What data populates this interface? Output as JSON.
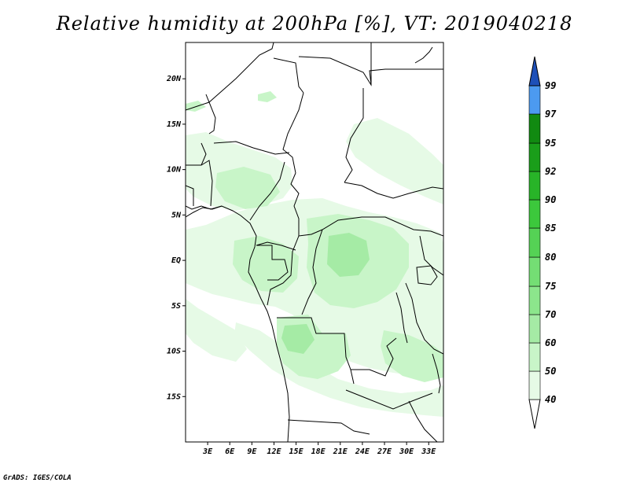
{
  "title": "Relative humidity at 200hPa [%], VT: 2019040218",
  "credit": "GrADS: IGES/COLA",
  "map": {
    "lon_range": [
      0,
      35
    ],
    "lat_range": [
      -20,
      24
    ],
    "y_axis_labels": [
      {
        "lat": 20,
        "text": "20N"
      },
      {
        "lat": 15,
        "text": "15N"
      },
      {
        "lat": 10,
        "text": "10N"
      },
      {
        "lat": 5,
        "text": "5N"
      },
      {
        "lat": 0,
        "text": "EQ"
      },
      {
        "lat": -5,
        "text": "5S"
      },
      {
        "lat": -10,
        "text": "10S"
      },
      {
        "lat": -15,
        "text": "15S"
      }
    ],
    "x_axis_labels": [
      {
        "lon": 3,
        "text": "3E"
      },
      {
        "lon": 6,
        "text": "6E"
      },
      {
        "lon": 9,
        "text": "9E"
      },
      {
        "lon": 12,
        "text": "12E"
      },
      {
        "lon": 15,
        "text": "15E"
      },
      {
        "lon": 18,
        "text": "18E"
      },
      {
        "lon": 21,
        "text": "21E"
      },
      {
        "lon": 24,
        "text": "24E"
      },
      {
        "lon": 27,
        "text": "27E"
      },
      {
        "lon": 30,
        "text": "30E"
      },
      {
        "lon": 33,
        "text": "33E"
      }
    ]
  },
  "colorbar": {
    "levels": [
      "40",
      "50",
      "60",
      "70",
      "75",
      "80",
      "85",
      "90",
      "92",
      "95",
      "97",
      "99"
    ],
    "colors": [
      "#e6fae6",
      "#c8f5c8",
      "#a5eba5",
      "#8ce68c",
      "#74de74",
      "#55d255",
      "#3cc83c",
      "#28b428",
      "#1a9e1a",
      "#118a11",
      "#4c9af0",
      "#2a6fd8",
      "#1e50b8"
    ],
    "bottom_cap_color": "#ffffff"
  },
  "colors": {
    "light_green": "#e6fae6",
    "mid_green": "#c8f5c8",
    "deep_green": "#a5eba5",
    "border": "#000000"
  }
}
